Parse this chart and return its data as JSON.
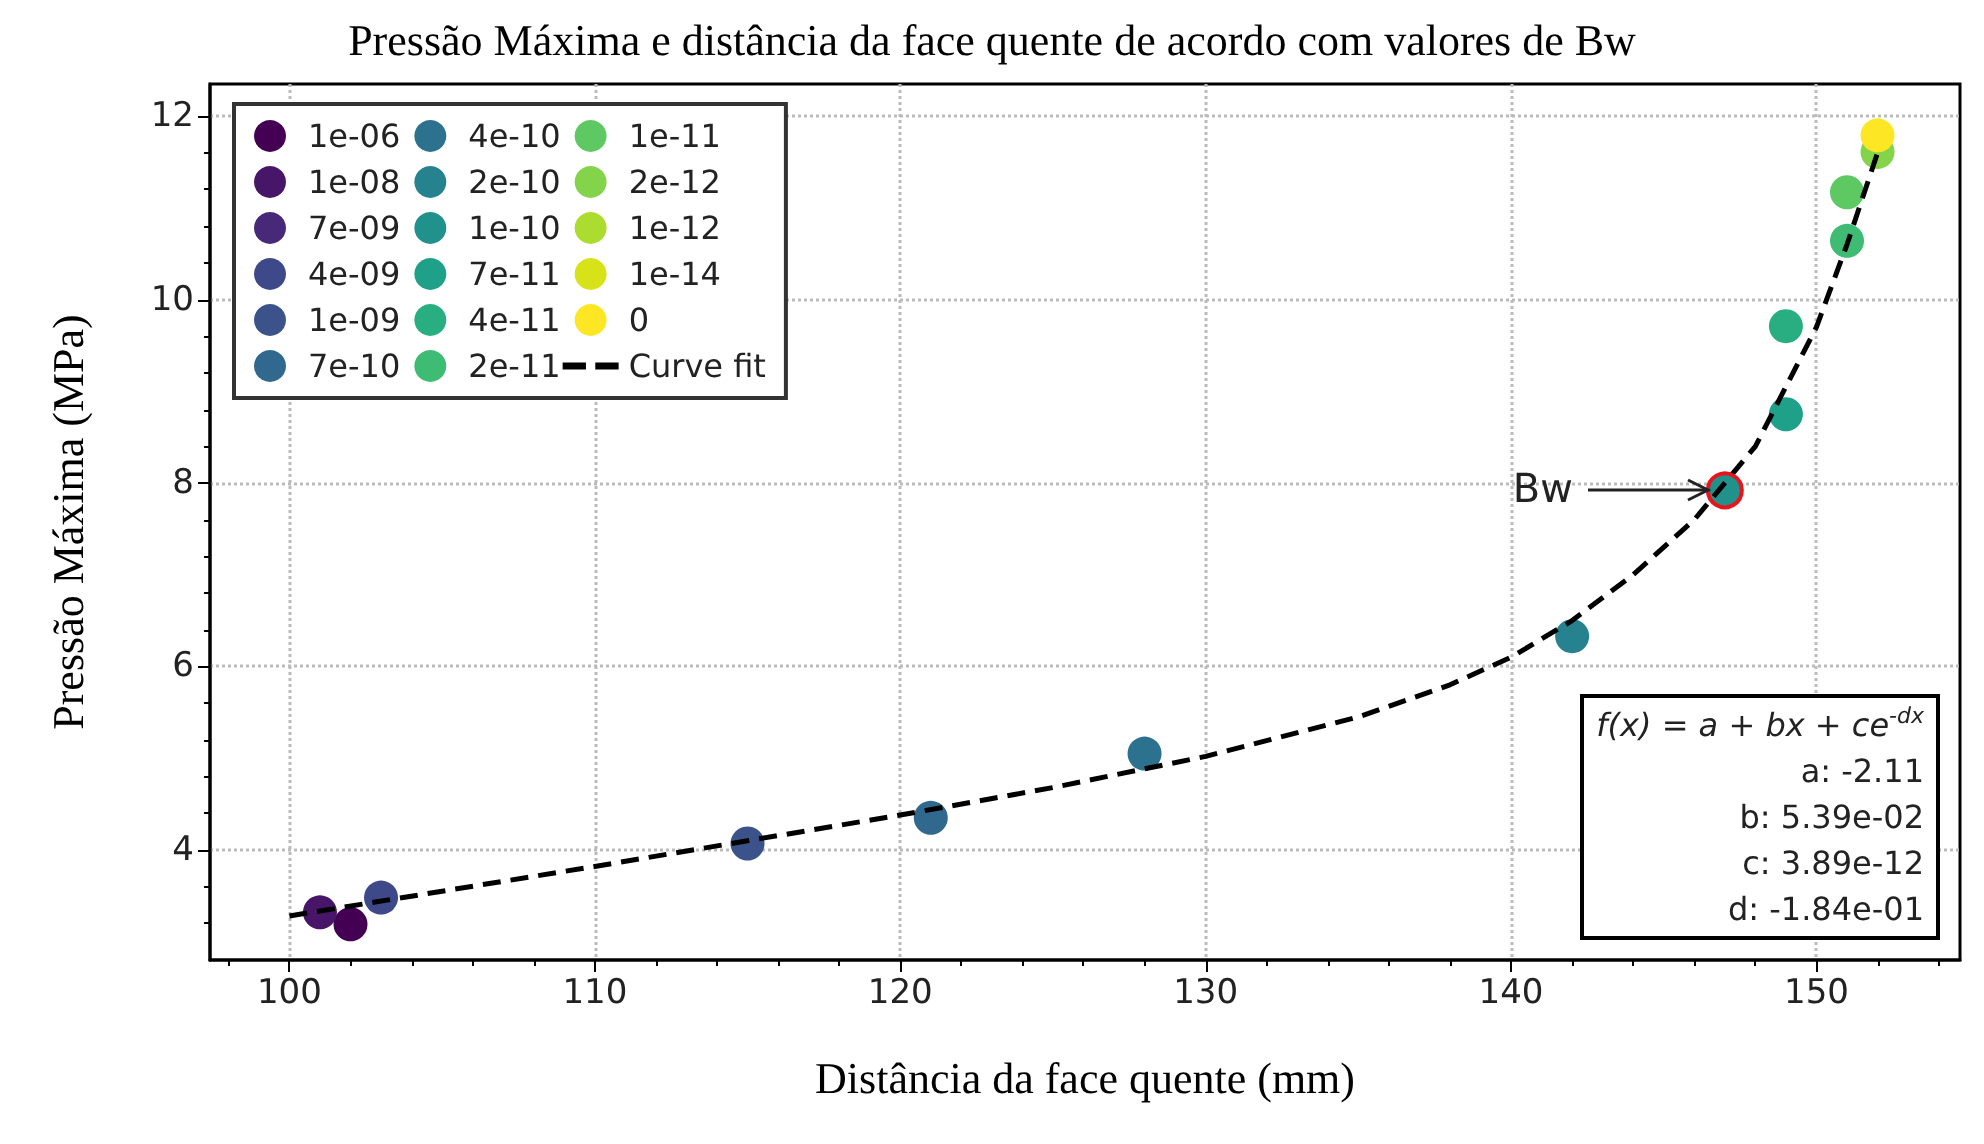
{
  "chart_data": {
    "type": "scatter",
    "title": "Pressão Máxima e distância da face quente de acordo com valores de Bw",
    "xlabel": "Distância da face quente (mm)",
    "ylabel": "Pressão Máxima (MPa)",
    "xlim": [
      97.4,
      154.7
    ],
    "xticks": [
      100,
      110,
      120,
      130,
      140,
      150
    ],
    "ylim": [
      2.8,
      12.35
    ],
    "yticks": [
      4,
      6,
      8,
      10,
      12
    ],
    "grid": true,
    "legend": "top left",
    "marker": "circle",
    "series": [
      {
        "name": "1e-06",
        "color": "#440154",
        "x": [
          102
        ],
        "values": [
          3.19
        ]
      },
      {
        "name": "1e-08",
        "color": "#481668",
        "x": [
          101
        ],
        "values": [
          3.32
        ]
      },
      {
        "name": "7e-09",
        "color": "#482878",
        "x": [
          null
        ],
        "values": [
          null
        ]
      },
      {
        "name": "4e-09",
        "color": "#3e4989",
        "x": [
          103
        ],
        "values": [
          3.48
        ]
      },
      {
        "name": "1e-09",
        "color": "#3b528b",
        "x": [
          115
        ],
        "values": [
          4.07
        ]
      },
      {
        "name": "7e-10",
        "color": "#31688e",
        "x": [
          121
        ],
        "values": [
          4.35
        ]
      },
      {
        "name": "4e-10",
        "color": "#2c728e",
        "x": [
          128
        ],
        "values": [
          5.05
        ]
      },
      {
        "name": "2e-10",
        "color": "#26828e",
        "x": [
          142
        ],
        "values": [
          6.33
        ]
      },
      {
        "name": "1e-10",
        "color": "#21918c",
        "x": [
          147
        ],
        "values": [
          7.92
        ]
      },
      {
        "name": "7e-11",
        "color": "#1fa088",
        "x": [
          149
        ],
        "values": [
          8.75
        ]
      },
      {
        "name": "4e-11",
        "color": "#28ae80",
        "x": [
          149
        ],
        "values": [
          9.71
        ]
      },
      {
        "name": "2e-11",
        "color": "#3fbc73",
        "x": [
          151
        ],
        "values": [
          10.64
        ]
      },
      {
        "name": "1e-11",
        "color": "#5ec962",
        "x": [
          151
        ],
        "values": [
          11.17
        ]
      },
      {
        "name": "2e-12",
        "color": "#84d44b",
        "x": [
          152
        ],
        "values": [
          11.61
        ]
      },
      {
        "name": "1e-12",
        "color": "#addc30",
        "x": [
          null
        ],
        "values": [
          null
        ]
      },
      {
        "name": "1e-14",
        "color": "#d8e219",
        "x": [
          null
        ],
        "values": [
          null
        ]
      },
      {
        "name": "0",
        "color": "#fde725",
        "x": [
          152
        ],
        "values": [
          11.79
        ]
      },
      {
        "name": "Curve fit",
        "type": "line",
        "color": "#000000",
        "line_style": "dashed",
        "marker": "none",
        "x": [
          100,
          105,
          110,
          115,
          120,
          125,
          130,
          135,
          138,
          140,
          142,
          144,
          146,
          148,
          150,
          151,
          152
        ],
        "values": [
          3.28,
          3.55,
          3.82,
          4.1,
          4.38,
          4.68,
          5.02,
          5.45,
          5.8,
          6.1,
          6.5,
          7.0,
          7.6,
          8.4,
          9.7,
          10.6,
          11.6
        ]
      }
    ],
    "annotations": [
      {
        "text": "Bw",
        "x": 147,
        "y": 7.92
      },
      "f(x) = a + bx + ce$^{-dx}$",
      "a: -2.11",
      "b: 5.39e-02",
      "c: 3.89e-12",
      "d: -1.84e-01"
    ]
  }
}
